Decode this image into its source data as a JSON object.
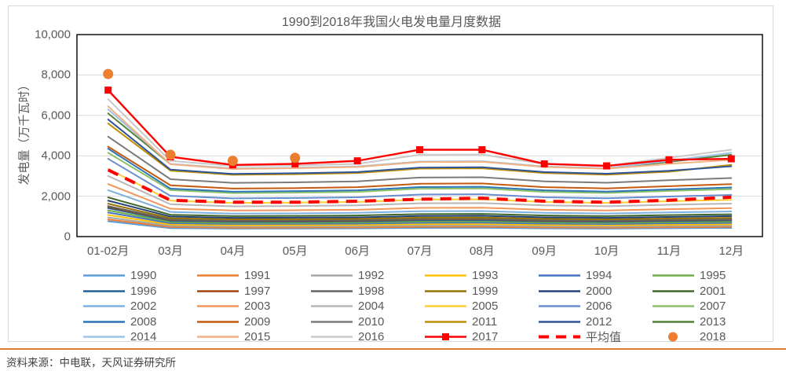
{
  "source": {
    "text": "资料来源：中电联，天风证券研究所"
  },
  "chart_data": {
    "type": "line",
    "title": "1990到2018年我国火电发电量月度数据",
    "ylabel": "发电量（万千瓦时）",
    "xlabel": "",
    "ylim": [
      0,
      10000
    ],
    "grid": "horizontal",
    "legend_position": "bottom",
    "y_ticks": [
      {
        "v": 0,
        "label": "0"
      },
      {
        "v": 2000,
        "label": "2,000"
      },
      {
        "v": 4000,
        "label": "4,000"
      },
      {
        "v": 6000,
        "label": "6,000"
      },
      {
        "v": 8000,
        "label": "8,000"
      },
      {
        "v": 10000,
        "label": "10,000"
      }
    ],
    "categories": [
      "01-02月",
      "03月",
      "04月",
      "05月",
      "06月",
      "07月",
      "08月",
      "09月",
      "10月",
      "11月",
      "12月"
    ],
    "series": [
      {
        "name": "1990",
        "color": "#5B9BD5",
        "style": "line",
        "values": [
          760,
          420,
          395,
          400,
          405,
          430,
          435,
          405,
          395,
          415,
          430
        ]
      },
      {
        "name": "1991",
        "color": "#ED7D31",
        "style": "line",
        "values": [
          845,
          470,
          440,
          445,
          450,
          480,
          485,
          450,
          440,
          460,
          480
        ]
      },
      {
        "name": "1992",
        "color": "#A5A5A5",
        "style": "line",
        "values": [
          950,
          530,
          495,
          500,
          510,
          545,
          550,
          510,
          495,
          520,
          540
        ]
      },
      {
        "name": "1993",
        "color": "#FFC000",
        "style": "line",
        "values": [
          1070,
          600,
          560,
          565,
          575,
          615,
          620,
          575,
          560,
          585,
          610
        ]
      },
      {
        "name": "1994",
        "color": "#4472C4",
        "style": "line",
        "values": [
          1190,
          665,
          625,
          630,
          640,
          685,
          690,
          640,
          625,
          655,
          680
        ]
      },
      {
        "name": "1995",
        "color": "#70AD47",
        "style": "line",
        "values": [
          1300,
          725,
          680,
          685,
          700,
          745,
          755,
          700,
          680,
          710,
          740
        ]
      },
      {
        "name": "1996",
        "color": "#255E91",
        "style": "line",
        "values": [
          1410,
          785,
          735,
          740,
          755,
          805,
          815,
          755,
          735,
          770,
          800
        ]
      },
      {
        "name": "1997",
        "color": "#9E480E",
        "style": "line",
        "values": [
          1480,
          825,
          775,
          780,
          795,
          850,
          860,
          795,
          775,
          810,
          845
        ]
      },
      {
        "name": "1998",
        "color": "#636363",
        "style": "line",
        "values": [
          1510,
          845,
          790,
          800,
          815,
          870,
          875,
          815,
          790,
          830,
          860
        ]
      },
      {
        "name": "1999",
        "color": "#997300",
        "style": "line",
        "values": [
          1630,
          910,
          855,
          860,
          880,
          940,
          945,
          880,
          855,
          895,
          930
        ]
      },
      {
        "name": "2000",
        "color": "#264478",
        "style": "line",
        "values": [
          1780,
          990,
          930,
          940,
          955,
          1020,
          1030,
          955,
          930,
          975,
          1015
        ]
      },
      {
        "name": "2001",
        "color": "#43682B",
        "style": "line",
        "values": [
          1940,
          1080,
          1015,
          1025,
          1045,
          1115,
          1125,
          1045,
          1015,
          1065,
          1105
        ]
      },
      {
        "name": "2002",
        "color": "#7CAFDD",
        "style": "line",
        "values": [
          2300,
          1220,
          1140,
          1150,
          1175,
          1255,
          1265,
          1175,
          1145,
          1195,
          1245
        ]
      },
      {
        "name": "2003",
        "color": "#F1975A",
        "style": "line",
        "values": [
          2600,
          1380,
          1295,
          1305,
          1330,
          1420,
          1430,
          1330,
          1295,
          1355,
          1410
        ]
      },
      {
        "name": "2004",
        "color": "#B7B7B7",
        "style": "line",
        "values": [
          3000,
          1600,
          1500,
          1515,
          1545,
          1650,
          1660,
          1545,
          1505,
          1575,
          1635
        ]
      },
      {
        "name": "2005",
        "color": "#FFCD33",
        "style": "line",
        "values": [
          3350,
          1780,
          1670,
          1685,
          1715,
          1835,
          1845,
          1715,
          1670,
          1750,
          1820
        ]
      },
      {
        "name": "2006",
        "color": "#698ED0",
        "style": "line",
        "values": [
          3850,
          2020,
          1890,
          1910,
          1945,
          2080,
          2095,
          1945,
          1895,
          1985,
          2060
        ]
      },
      {
        "name": "2007",
        "color": "#8CC168",
        "style": "line",
        "values": [
          4150,
          2300,
          2155,
          2175,
          2215,
          2370,
          2385,
          2215,
          2160,
          2260,
          2350
        ]
      },
      {
        "name": "2008",
        "color": "#2E75B6",
        "style": "line",
        "values": [
          4350,
          2375,
          2225,
          2250,
          2290,
          2450,
          2465,
          2290,
          2230,
          2335,
          2430
        ]
      },
      {
        "name": "2009",
        "color": "#C55A11",
        "style": "line",
        "values": [
          4450,
          2540,
          2380,
          2400,
          2445,
          2615,
          2630,
          2445,
          2385,
          2495,
          2595
        ]
      },
      {
        "name": "2010",
        "color": "#7B7B7B",
        "style": "line",
        "values": [
          4950,
          2840,
          2660,
          2685,
          2735,
          2925,
          2940,
          2735,
          2665,
          2790,
          2900
        ]
      },
      {
        "name": "2011",
        "color": "#BF8F00",
        "style": "line",
        "values": [
          5600,
          3265,
          3060,
          3090,
          3145,
          3365,
          3380,
          3145,
          3065,
          3210,
          3550
        ]
      },
      {
        "name": "2012",
        "color": "#2F5597",
        "style": "line",
        "values": [
          5800,
          3315,
          3105,
          3135,
          3195,
          3415,
          3435,
          3195,
          3115,
          3260,
          3480
        ]
      },
      {
        "name": "2013",
        "color": "#538135",
        "style": "line",
        "values": [
          6100,
          3590,
          3360,
          3395,
          3455,
          3695,
          3715,
          3455,
          3370,
          3700,
          4050
        ]
      },
      {
        "name": "2014",
        "color": "#9DC3E6",
        "style": "line",
        "values": [
          6300,
          3600,
          3375,
          3410,
          3475,
          3715,
          3730,
          3475,
          3385,
          3750,
          4150
        ]
      },
      {
        "name": "2015",
        "color": "#F4B183",
        "style": "line",
        "values": [
          6450,
          3580,
          3350,
          3385,
          3450,
          3690,
          3705,
          3450,
          3360,
          3600,
          3800
        ]
      },
      {
        "name": "2016",
        "color": "#C9C9C9",
        "style": "line",
        "values": [
          6800,
          3750,
          3500,
          3520,
          3600,
          4050,
          4060,
          3600,
          3500,
          3900,
          4300
        ]
      },
      {
        "name": "2017",
        "color": "#FF0000",
        "style": "line-square",
        "values": [
          7250,
          3950,
          3550,
          3600,
          3750,
          4300,
          4300,
          3600,
          3500,
          3800,
          3850
        ]
      },
      {
        "name": "平均值",
        "color": "#FF0000",
        "style": "dashed",
        "values": [
          3300,
          1800,
          1700,
          1700,
          1750,
          1850,
          1900,
          1750,
          1700,
          1800,
          1950
        ]
      },
      {
        "name": "2018",
        "color": "#ED7D31",
        "style": "dots",
        "values": [
          8050,
          4050,
          3750,
          3900
        ]
      }
    ]
  }
}
